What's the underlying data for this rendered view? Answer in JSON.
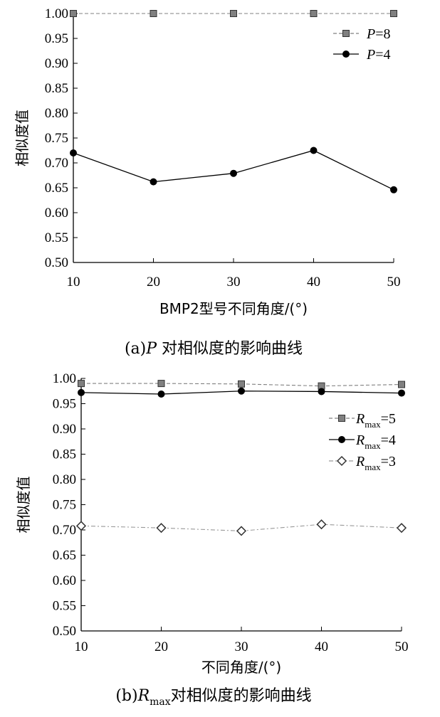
{
  "chart_data": [
    {
      "type": "line",
      "caption_prefix": "(a)",
      "caption_var": "P",
      "caption_rest": " 对相似度的影响曲线",
      "xlabel": "BMP2型号不同角度/(°)",
      "ylabel": "相似度值",
      "x": [
        10,
        20,
        30,
        40,
        50
      ],
      "xlim": [
        10,
        50
      ],
      "ylim": [
        0.5,
        1.0
      ],
      "xticks": [
        "10",
        "20",
        "30",
        "40",
        "50"
      ],
      "yticks": [
        "0.50",
        "0.55",
        "0.60",
        "0.65",
        "0.70",
        "0.75",
        "0.80",
        "0.85",
        "0.90",
        "0.95",
        "1.00"
      ],
      "legend_position": "top-right",
      "series": [
        {
          "legend_var": "P",
          "legend_val": "=8",
          "marker": "square",
          "dash": "dashed",
          "color": "#808080",
          "values": [
            1.0,
            1.0,
            1.0,
            1.0,
            1.0
          ]
        },
        {
          "legend_var": "P",
          "legend_val": "=4",
          "marker": "circle",
          "dash": "solid",
          "color": "#000000",
          "values": [
            0.72,
            0.662,
            0.679,
            0.725,
            0.646
          ]
        }
      ]
    },
    {
      "type": "line",
      "caption_prefix": "(b)",
      "caption_var": "R",
      "caption_sub": "max",
      "caption_rest": "对相似度的影响曲线",
      "xlabel": "不同角度/(°)",
      "ylabel": "相似度值",
      "x": [
        10,
        20,
        30,
        40,
        50
      ],
      "xlim": [
        10,
        50
      ],
      "ylim": [
        0.5,
        1.0
      ],
      "xticks": [
        "10",
        "20",
        "30",
        "40",
        "50"
      ],
      "yticks": [
        "0.50",
        "0.55",
        "0.60",
        "0.65",
        "0.70",
        "0.75",
        "0.80",
        "0.85",
        "0.90",
        "0.95",
        "1.00"
      ],
      "legend_position": "top-right",
      "series": [
        {
          "legend_var": "R",
          "legend_sub": "max",
          "legend_val": "=5",
          "marker": "square",
          "dash": "dashed",
          "color": "#808080",
          "values": [
            0.99,
            0.99,
            0.989,
            0.985,
            0.988
          ]
        },
        {
          "legend_var": "R",
          "legend_sub": "max",
          "legend_val": "=4",
          "marker": "circle",
          "dash": "solid",
          "color": "#000000",
          "values": [
            0.972,
            0.969,
            0.975,
            0.974,
            0.971
          ]
        },
        {
          "legend_var": "R",
          "legend_sub": "max",
          "legend_val": "=3",
          "marker": "diamond",
          "dash": "dashdot",
          "color": "#999999",
          "values": [
            0.708,
            0.704,
            0.698,
            0.711,
            0.704
          ]
        }
      ]
    }
  ]
}
